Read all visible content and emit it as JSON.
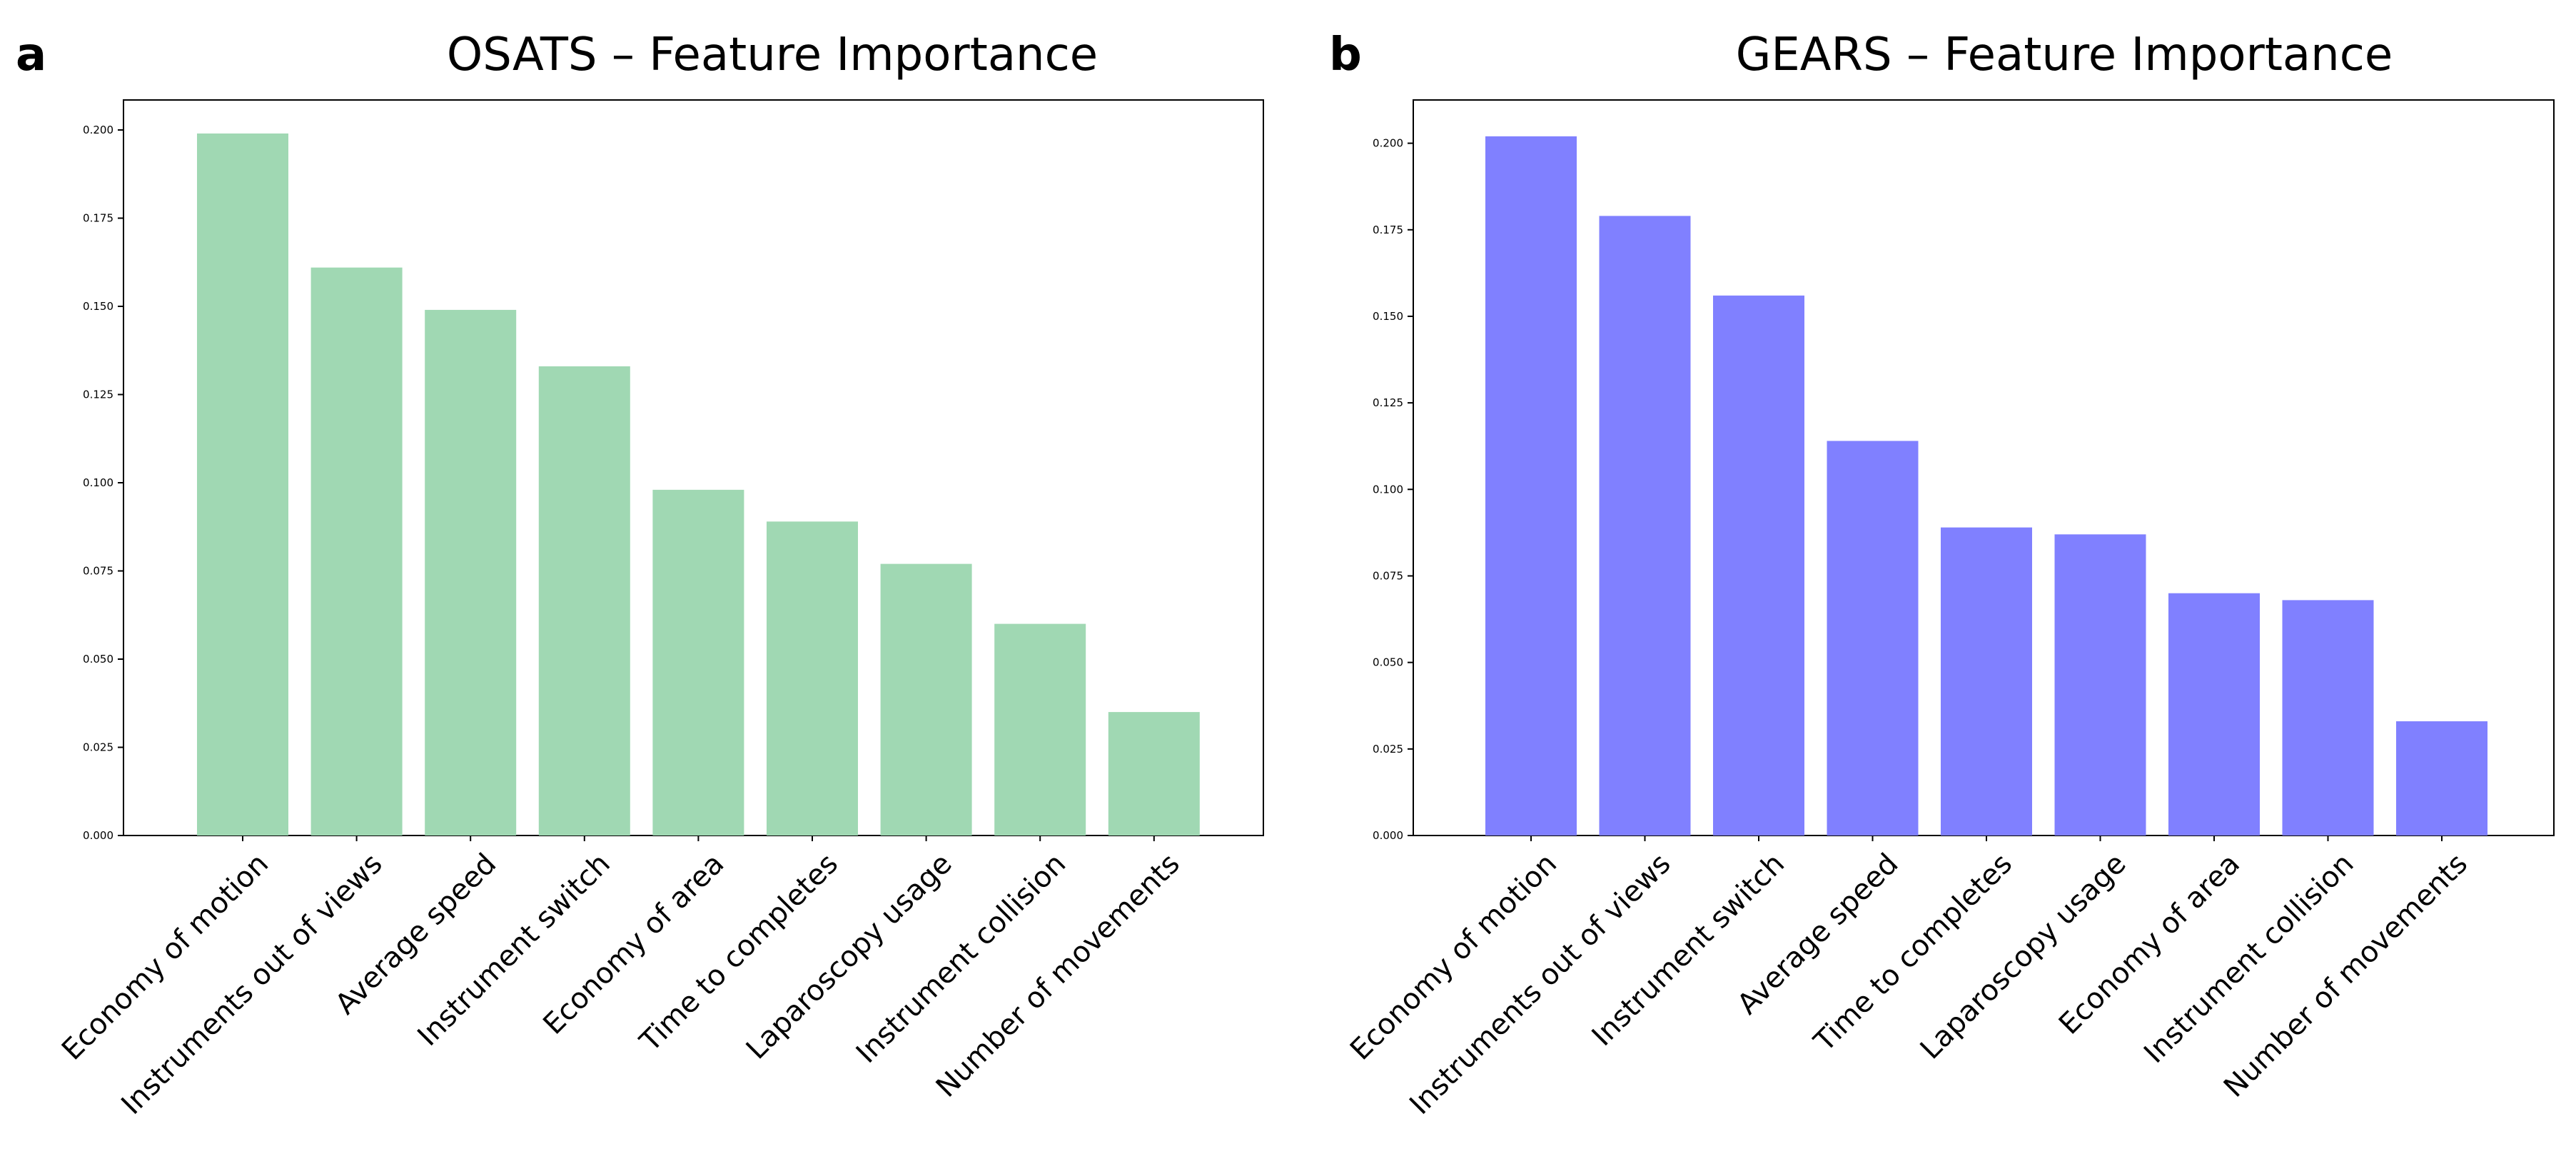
{
  "chart_data": [
    {
      "panel": "a",
      "type": "bar",
      "title": "OSATS – Feature Importance",
      "xlabel": "",
      "ylabel": "",
      "categories": [
        "Economy of motion",
        "Instruments out of views",
        "Average speed",
        "Instrument switch",
        "Economy of area",
        "Time to completes",
        "Laparoscopy usage",
        "Instrument collision",
        "Number of movements"
      ],
      "values": [
        0.199,
        0.161,
        0.149,
        0.133,
        0.098,
        0.089,
        0.077,
        0.06,
        0.035
      ],
      "ylim": [
        0,
        0.2085
      ],
      "yticks": [
        "0.000",
        "0.025",
        "0.050",
        "0.075",
        "0.100",
        "0.125",
        "0.150",
        "0.175",
        "0.200"
      ],
      "color": "#a0d8b3",
      "grid": false,
      "legend": "none"
    },
    {
      "panel": "b",
      "type": "bar",
      "title": "GEARS – Feature Importance",
      "xlabel": "",
      "ylabel": "",
      "categories": [
        "Economy of motion",
        "Instruments out of views",
        "Instrument switch",
        "Average speed",
        "Time to completes",
        "Laparoscopy usage",
        "Economy of area",
        "Instrument collision",
        "Number of movements"
      ],
      "values": [
        0.202,
        0.179,
        0.156,
        0.114,
        0.089,
        0.087,
        0.07,
        0.068,
        0.033
      ],
      "ylim": [
        0,
        0.2125
      ],
      "yticks": [
        "0.000",
        "0.025",
        "0.050",
        "0.075",
        "0.100",
        "0.125",
        "0.150",
        "0.175",
        "0.200"
      ],
      "color": "#8080ff",
      "grid": false,
      "legend": "none"
    }
  ]
}
